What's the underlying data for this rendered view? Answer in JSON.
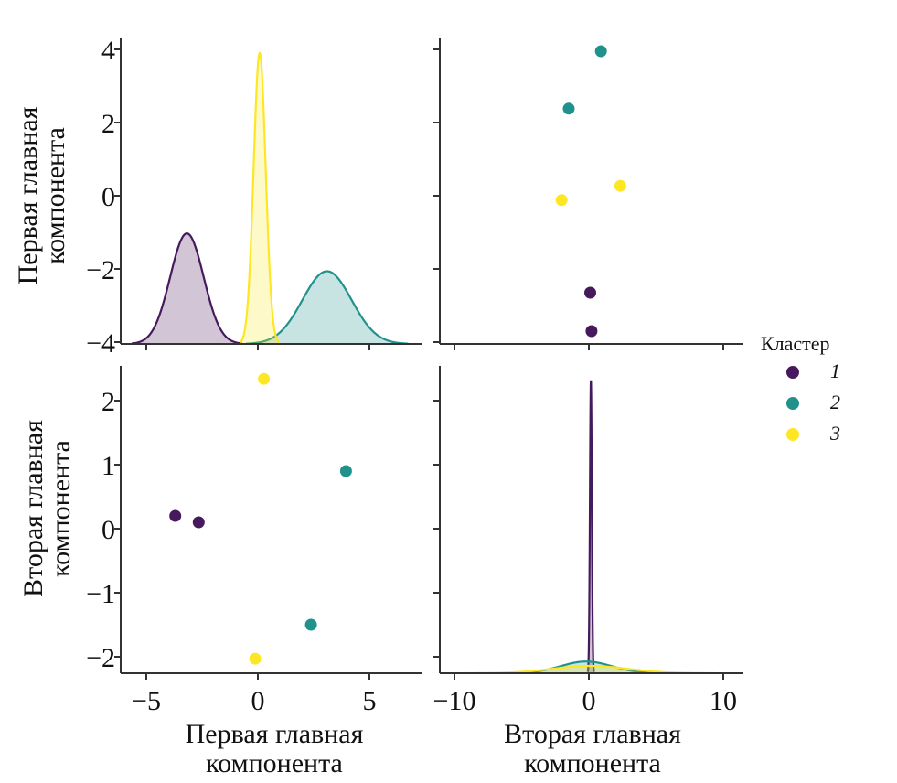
{
  "chart_data": {
    "type": "scatter",
    "kind": "pairplot",
    "variables": [
      "Первая главная компонента",
      "Вторая главная компонента"
    ],
    "legend": {
      "title": "Кластер",
      "placement": "right",
      "entries": [
        {
          "label": "1",
          "color": "#46195c"
        },
        {
          "label": "2",
          "color": "#21918c"
        },
        {
          "label": "3",
          "color": "#fde725"
        }
      ]
    },
    "axes": {
      "pc1": {
        "label_line1": "Первая главная",
        "label_line2": "компонента",
        "range": [
          -6.0,
          7.3
        ],
        "ticks": [
          -5,
          0,
          5
        ],
        "tick_labels": [
          "−5",
          "0",
          "5"
        ],
        "y_range": [
          -4.0,
          4.4
        ],
        "y_ticks": [
          -4,
          -2,
          0,
          2,
          4
        ],
        "y_tick_labels": [
          "−4",
          "−2",
          "0",
          "2",
          "4"
        ]
      },
      "pc2": {
        "label_line1": "Вторая главная",
        "label_line2": "компонента",
        "range": [
          -11.1,
          11.5
        ],
        "ticks": [
          -10,
          0,
          10
        ],
        "tick_labels": [
          "−10",
          "0",
          "10"
        ],
        "y_range": [
          -2.25,
          2.55
        ],
        "y_ticks": [
          -2,
          -1,
          0,
          1,
          2
        ],
        "y_tick_labels": [
          "−2",
          "−1",
          "0",
          "1",
          "2"
        ]
      }
    },
    "points": [
      {
        "cluster": "1",
        "pc1": -3.7,
        "pc2": 0.2
      },
      {
        "cluster": "1",
        "pc1": -2.65,
        "pc2": 0.1
      },
      {
        "cluster": "2",
        "pc1": 3.95,
        "pc2": 0.9
      },
      {
        "cluster": "2",
        "pc1": 2.38,
        "pc2": -1.5
      },
      {
        "cluster": "3",
        "pc1": 0.27,
        "pc2": 2.34
      },
      {
        "cluster": "3",
        "pc1": -0.12,
        "pc2": -2.03
      }
    ],
    "kde_pc1": [
      {
        "cluster": "1",
        "mean": -3.18,
        "sd": 0.75,
        "peak": 0.38
      },
      {
        "cluster": "2",
        "mean": 3.1,
        "sd": 1.1,
        "peak": 0.25
      },
      {
        "cluster": "3",
        "mean": 0.08,
        "sd": 0.27,
        "peak": 1.0
      }
    ],
    "kde_pc2": [
      {
        "cluster": "1",
        "mean": 0.15,
        "sd": 0.07,
        "peak": 1.0
      },
      {
        "cluster": "2",
        "mean": -0.2,
        "sd": 1.9,
        "peak": 0.04
      },
      {
        "cluster": "3",
        "mean": 0.1,
        "sd": 2.8,
        "peak": 0.025
      }
    ]
  }
}
